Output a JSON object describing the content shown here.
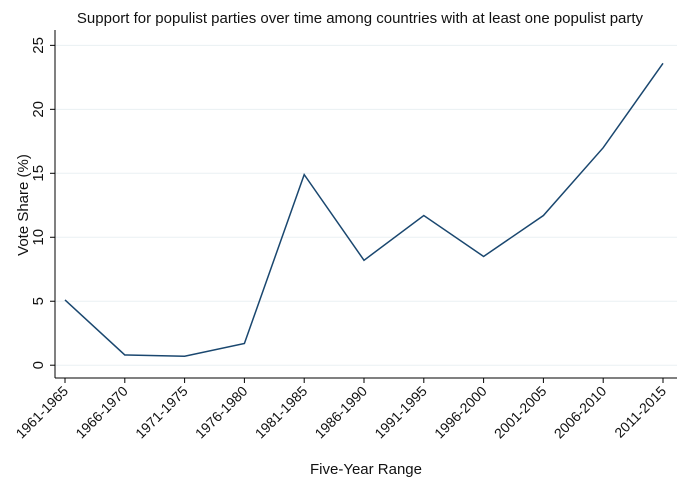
{
  "chart_data": {
    "type": "line",
    "title": "Support for populist parties over time among countries with at least one populist party",
    "x_label": "Five-Year Range",
    "y_label": "Vote Share (%)",
    "categories": [
      "1961-1965",
      "1966-1970",
      "1971-1975",
      "1976-1980",
      "1981-1985",
      "1986-1990",
      "1991-1995",
      "1996-2000",
      "2001-2005",
      "2006-2010",
      "2011-2015"
    ],
    "series": [
      {
        "name": "Vote Share (%)",
        "color": "#1a476f",
        "values": [
          5.1,
          0.8,
          0.7,
          1.7,
          14.9,
          8.2,
          11.7,
          8.5,
          11.7,
          17.0,
          23.6
        ]
      }
    ],
    "ylim": [
      -1,
      26.2
    ],
    "yticks": [
      0,
      5,
      10,
      15,
      20,
      25
    ],
    "grid": true
  }
}
